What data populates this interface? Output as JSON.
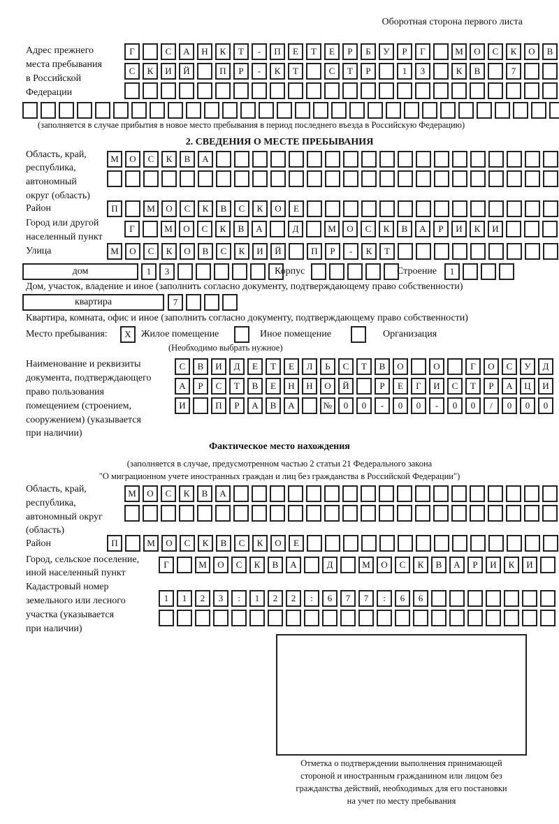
{
  "header": "Оборотная сторона первого листа",
  "prev_address": {
    "label": [
      "Адрес прежнего",
      "места пребывания",
      "в Российской",
      "Федерации"
    ],
    "rows": [
      "Г САНКТ-ПЕТЕРБУРГ МОСКОВ",
      "СКИЙ ПР-КТ СТР 13 КВ 7",
      "",
      ""
    ],
    "note": "(заполняется в случае прибытия в новое место пребывания в период последнего въезда в Российскую Федерацию)"
  },
  "section2": {
    "title": "2. СВЕДЕНИЯ О МЕСТЕ ПРЕБЫВАНИЯ",
    "region_label": [
      "Область, край,",
      "республика,",
      "автономный",
      "округ (область)"
    ],
    "region_rows": [
      "МОСКВА",
      ""
    ],
    "district_label": "Район",
    "district": "П МОСКВСКОЕ",
    "city_label": [
      "Город или другой",
      "населенный пункт"
    ],
    "city": "Г МОСКВА Д МОСКВАРИКИ",
    "street_label": "Улица",
    "street": "МОСКОВСКИЙ ПР-КТ",
    "house_type": "дом",
    "house": "13",
    "korpus_label": "Корпус",
    "korpus": "",
    "stroenie_label": "Строение",
    "stroenie": "1",
    "house_caption": "Дом, участок, владение и иное (заполнить согласно документу, подтверждающему право собственности)",
    "flat_type": "квартира",
    "flat": "7",
    "flat_caption": "Квартира, комната, офис и иное (заполнить согласно документу, подтверждающему право собственности)",
    "stay_label": "Место пребывания:",
    "stay_options": [
      {
        "label": "Жилое помещение",
        "mark": "Х"
      },
      {
        "label": "Иное помещение",
        "mark": ""
      },
      {
        "label": "Организация",
        "mark": ""
      }
    ],
    "stay_note": "(Необходимо выбрать нужное)",
    "doc_label": [
      "Наименование и реквизиты",
      "документа, подтверждающего",
      "право пользования",
      "помещением (строением,",
      "сооружением) (указывается",
      "при наличии)"
    ],
    "doc_rows": [
      "СВИДЕТЕЛЬСТВО О ГОСУД",
      "АРСТВЕННОЙ РЕГИСТРАЦИ",
      "И ПРАВА №00-00-00/000"
    ]
  },
  "actual": {
    "title": "Фактическое место нахождения",
    "note": [
      "(заполняется в случае, предусмотренном частью 2 статьи 21 Федерального закона",
      "\"О миграционном учете иностранных граждан и лиц без гражданства в Российской Федерации\")"
    ],
    "region_label": [
      "Область, край,",
      "республика,",
      "автономный округ",
      "(область)"
    ],
    "region_rows": [
      "МОСКВА",
      ""
    ],
    "district_label": "Район",
    "district": "П МОСКВСКОЕ",
    "city_label": [
      "Город, сельское поселение,",
      "иной населенный пункт"
    ],
    "city": "Г МОСКВА Д МОСКВАРИКИ",
    "cadastral_label": [
      "Кадастровый номер",
      "земельного или лесного",
      "участка (указывается",
      "при наличии)"
    ],
    "cadastral_rows": [
      "1123:122:677:66",
      ""
    ]
  },
  "stamp_caption": [
    "Отметка о подтверждении выполнения принимающей",
    "стороной и иностранным гражданином или лицом без",
    "гражданства действий, необходимых для его постановки",
    "на учет по месту пребывания"
  ]
}
